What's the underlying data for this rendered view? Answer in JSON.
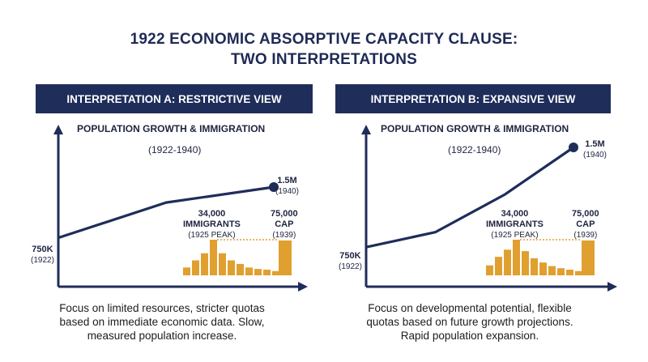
{
  "title_line1": "1922 ECONOMIC ABSORPTIVE CAPACITY CLAUSE:",
  "title_line2": "TWO INTERPRETATIONS",
  "colors": {
    "navy": "#1f2d5a",
    "bars": "#e0a030",
    "text": "#1c1c1c"
  },
  "chart_data": [
    {
      "type": "line",
      "banner": "INTERPRETATION A: RESTRICTIVE VIEW",
      "title": "POPULATION GROWTH & IMMIGRATION",
      "subtitle": "(1922-1940)",
      "start_label": "750K",
      "start_year": "(1922)",
      "end_label": "1.5M",
      "end_year": "(1940)",
      "peak_label_1": "34,000",
      "peak_label_2": "IMMIGRANTS",
      "peak_label_3": "(1925 PEAK)",
      "cap_label_1": "75,000",
      "cap_label_2": "CAP",
      "cap_label_3": "(1939)",
      "line_values": [
        0.28,
        0.78,
        1.0
      ],
      "bar_values": [
        0.22,
        0.42,
        0.62,
        1.0,
        0.62,
        0.42,
        0.32,
        0.22,
        0.18,
        0.16,
        0.12
      ],
      "cap_value": 0.98,
      "description": [
        "Focus on limited resources, stricter quotas",
        "based on immediate economic data. Slow,",
        "measured population increase."
      ]
    },
    {
      "type": "line",
      "banner": "INTERPRETATION B: EXPANSIVE VIEW",
      "title": "POPULATION GROWTH & IMMIGRATION",
      "subtitle": "(1922-1940)",
      "start_label": "750K",
      "start_year": "(1922)",
      "end_label": "1.5M",
      "end_year": "(1940)",
      "peak_label_1": "34,000",
      "peak_label_2": "IMMIGRANTS",
      "peak_label_3": "(1925 PEAK)",
      "cap_label_1": "75,000",
      "cap_label_2": "CAP",
      "cap_label_3": "(1939)",
      "line_values": [
        0.2,
        0.32,
        0.62,
        1.0
      ],
      "bar_values": [
        0.28,
        0.52,
        0.72,
        1.0,
        0.68,
        0.48,
        0.36,
        0.26,
        0.2,
        0.16,
        0.12
      ],
      "cap_value": 0.98,
      "description": [
        "Focus on developmental potential, flexible",
        "quotas based on future growth projections.",
        "Rapid population expansion."
      ]
    }
  ]
}
